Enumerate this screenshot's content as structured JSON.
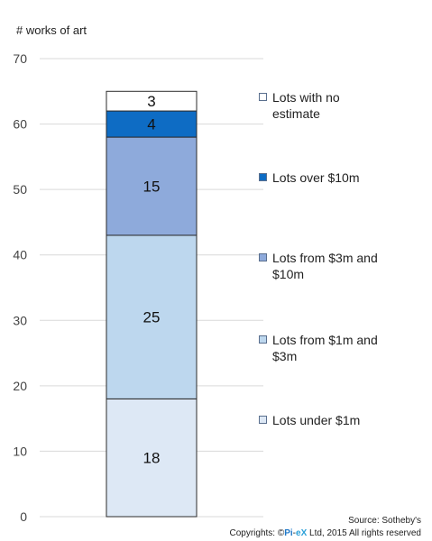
{
  "chart_data": {
    "type": "bar",
    "stacked": true,
    "ylabel": "# works of art",
    "ylim": [
      0,
      70
    ],
    "yticks": [
      0,
      10,
      20,
      30,
      40,
      50,
      60,
      70
    ],
    "grid": true,
    "legend_position": "right",
    "series": [
      {
        "name": "Lots under $1m",
        "value": 18,
        "color": "#dde8f5"
      },
      {
        "name": "Lots from $1m and $3m",
        "value": 25,
        "color": "#bdd7ee"
      },
      {
        "name": "Lots from $3m and $10m",
        "value": 15,
        "color": "#8eaadb"
      },
      {
        "name": "Lots over $10m",
        "value": 4,
        "color": "#0e6cc4"
      },
      {
        "name": "Lots with no estimate",
        "value": 3,
        "color": "#ffffff"
      }
    ]
  },
  "legend": {
    "items": [
      {
        "lines": [
          "Lots with no",
          "estimate"
        ],
        "color": "#ffffff"
      },
      {
        "lines": [
          "Lots over $10m"
        ],
        "color": "#0e6cc4"
      },
      {
        "lines": [
          "Lots from $3m and",
          "$10m"
        ],
        "color": "#8eaadb"
      },
      {
        "lines": [
          "Lots from $1m and",
          "$3m"
        ],
        "color": "#bdd7ee"
      },
      {
        "lines": [
          "Lots under $1m"
        ],
        "color": "#dde8f5"
      }
    ]
  },
  "footer": {
    "source": "Source: Sotheby's",
    "copyright_prefix": "Copyrights: ©",
    "brand_a": "Pi",
    "brand_sep": "-",
    "brand_b": "eX",
    "copyright_suffix": " Ltd, 2015 All rights reserved"
  }
}
